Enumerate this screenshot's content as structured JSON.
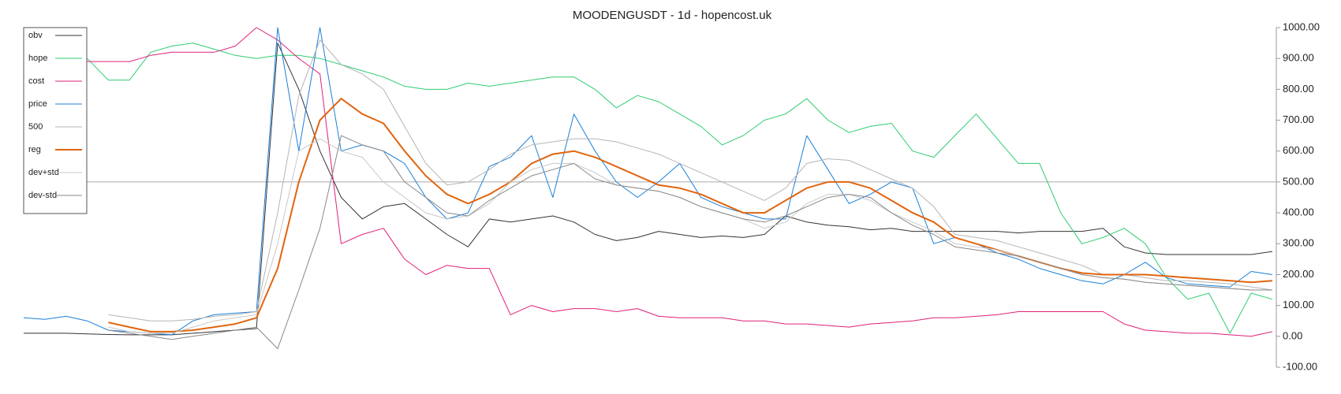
{
  "chart_data": {
    "type": "line",
    "title": "MOODENGUSDT - 1d - hopencost.uk",
    "categories": [
      null,
      null,
      null,
      null,
      null,
      null,
      null,
      null,
      null,
      null,
      null,
      null,
      null,
      null,
      null,
      null,
      null,
      null,
      null,
      null,
      null,
      null,
      null,
      null,
      null,
      null,
      null,
      null,
      null,
      null,
      null,
      null,
      null,
      null,
      null,
      null,
      null,
      null,
      null,
      null,
      null,
      null,
      null,
      null,
      null,
      null,
      null,
      null,
      null,
      null,
      null,
      null,
      null,
      null,
      null,
      null,
      null,
      null,
      null,
      null
    ],
    "ylim": [
      -100,
      1000
    ],
    "yticks": [
      {
        "value": 1000,
        "label": "1000.00"
      },
      {
        "value": 900,
        "label": "900.00"
      },
      {
        "value": 800,
        "label": "800.00"
      },
      {
        "value": 700,
        "label": "700.00"
      },
      {
        "value": 600,
        "label": "600.00"
      },
      {
        "value": 500,
        "label": "500.00"
      },
      {
        "value": 400,
        "label": "400.00"
      },
      {
        "value": 300,
        "label": "300.00"
      },
      {
        "value": 200,
        "label": "200.00"
      },
      {
        "value": 100,
        "label": "100.00"
      },
      {
        "value": 0,
        "label": "0.00"
      },
      {
        "value": -100,
        "label": "-100.00"
      }
    ],
    "reference_line": 500,
    "legend": "top-left",
    "series": [
      {
        "name": "obv",
        "color": "#333333",
        "line_width": 1,
        "values": [
          10,
          10,
          10,
          8,
          6,
          5,
          5,
          5,
          10,
          15,
          20,
          25,
          950,
          800,
          600,
          450,
          380,
          420,
          430,
          380,
          330,
          290,
          380,
          370,
          380,
          390,
          370,
          330,
          310,
          320,
          340,
          330,
          320,
          325,
          320,
          330,
          390,
          370,
          360,
          355,
          345,
          350,
          340,
          340,
          340,
          340,
          340,
          335,
          340,
          340,
          340,
          350,
          290,
          270,
          265,
          265,
          265,
          265,
          265,
          275
        ]
      },
      {
        "name": "hope",
        "color": "#2ecc71",
        "line_width": 1,
        "values": [
          null,
          null,
          null,
          900,
          830,
          830,
          920,
          940,
          950,
          930,
          910,
          900,
          910,
          910,
          900,
          880,
          860,
          840,
          810,
          800,
          800,
          820,
          810,
          820,
          830,
          840,
          840,
          800,
          740,
          780,
          760,
          720,
          680,
          620,
          650,
          700,
          720,
          770,
          700,
          660,
          680,
          690,
          600,
          580,
          650,
          720,
          640,
          560,
          560,
          400,
          300,
          320,
          350,
          300,
          190,
          120,
          140,
          10,
          140,
          120
        ]
      },
      {
        "name": "cost",
        "color": "#e0207a",
        "line_width": 1,
        "values": [
          null,
          null,
          null,
          890,
          890,
          890,
          910,
          920,
          920,
          920,
          940,
          1000,
          960,
          900,
          850,
          300,
          330,
          350,
          250,
          200,
          230,
          220,
          220,
          70,
          100,
          80,
          90,
          90,
          80,
          90,
          65,
          60,
          60,
          60,
          50,
          50,
          40,
          40,
          35,
          30,
          40,
          45,
          50,
          60,
          60,
          65,
          70,
          80,
          80,
          80,
          80,
          80,
          40,
          20,
          15,
          10,
          10,
          5,
          0,
          15
        ]
      },
      {
        "name": "price",
        "color": "#1a7fd9",
        "line_width": 1,
        "values": [
          60,
          55,
          65,
          50,
          20,
          15,
          10,
          5,
          50,
          70,
          75,
          80,
          1000,
          600,
          1000,
          600,
          620,
          600,
          560,
          450,
          380,
          400,
          550,
          580,
          650,
          450,
          720,
          600,
          500,
          450,
          500,
          560,
          450,
          420,
          400,
          380,
          380,
          650,
          540,
          430,
          460,
          500,
          480,
          300,
          320,
          300,
          270,
          250,
          220,
          200,
          180,
          170,
          200,
          240,
          190,
          170,
          165,
          160,
          210,
          200
        ]
      },
      {
        "name": "500",
        "color": "#b5b5b5",
        "line_width": 1,
        "values": [
          null,
          null,
          null,
          null,
          70,
          60,
          50,
          50,
          55,
          65,
          70,
          80,
          400,
          780,
          960,
          880,
          850,
          800,
          680,
          560,
          490,
          500,
          540,
          590,
          620,
          630,
          640,
          640,
          630,
          610,
          590,
          560,
          530,
          500,
          470,
          440,
          480,
          560,
          575,
          570,
          540,
          510,
          480,
          420,
          330,
          320,
          310,
          290,
          270,
          250,
          230,
          200,
          200,
          190,
          180,
          180,
          175,
          170,
          160,
          150
        ]
      },
      {
        "name": "reg",
        "color": "#e0650f",
        "line_width": 2,
        "values": [
          null,
          null,
          null,
          null,
          45,
          30,
          15,
          15,
          20,
          30,
          40,
          60,
          220,
          500,
          700,
          770,
          720,
          690,
          600,
          520,
          460,
          430,
          460,
          500,
          560,
          590,
          600,
          580,
          550,
          520,
          490,
          480,
          460,
          430,
          400,
          400,
          440,
          480,
          500,
          500,
          480,
          440,
          400,
          370,
          320,
          300,
          280,
          260,
          240,
          220,
          205,
          200,
          200,
          200,
          195,
          190,
          185,
          180,
          175,
          180
        ]
      },
      {
        "name": "dev+std",
        "color": "#c8c8c8",
        "line_width": 1,
        "values": [
          null,
          null,
          null,
          null,
          30,
          15,
          10,
          10,
          30,
          50,
          60,
          70,
          300,
          600,
          640,
          600,
          580,
          500,
          450,
          400,
          380,
          390,
          430,
          500,
          540,
          560,
          560,
          530,
          490,
          480,
          470,
          450,
          420,
          400,
          380,
          350,
          370,
          430,
          460,
          460,
          440,
          400,
          370,
          340,
          300,
          290,
          280,
          260,
          240,
          220,
          200,
          190,
          185,
          175,
          170,
          165,
          160,
          155,
          150,
          150
        ]
      },
      {
        "name": "dev-std",
        "color": "#888888",
        "line_width": 1,
        "values": [
          null,
          null,
          null,
          null,
          20,
          10,
          0,
          -10,
          0,
          10,
          20,
          30,
          -40,
          150,
          350,
          650,
          620,
          600,
          500,
          450,
          400,
          390,
          440,
          480,
          520,
          540,
          560,
          510,
          490,
          480,
          470,
          450,
          420,
          400,
          380,
          370,
          390,
          420,
          450,
          460,
          450,
          400,
          360,
          330,
          290,
          280,
          270,
          260,
          240,
          220,
          200,
          190,
          185,
          175,
          170,
          165,
          160,
          155,
          150,
          150
        ]
      }
    ]
  }
}
